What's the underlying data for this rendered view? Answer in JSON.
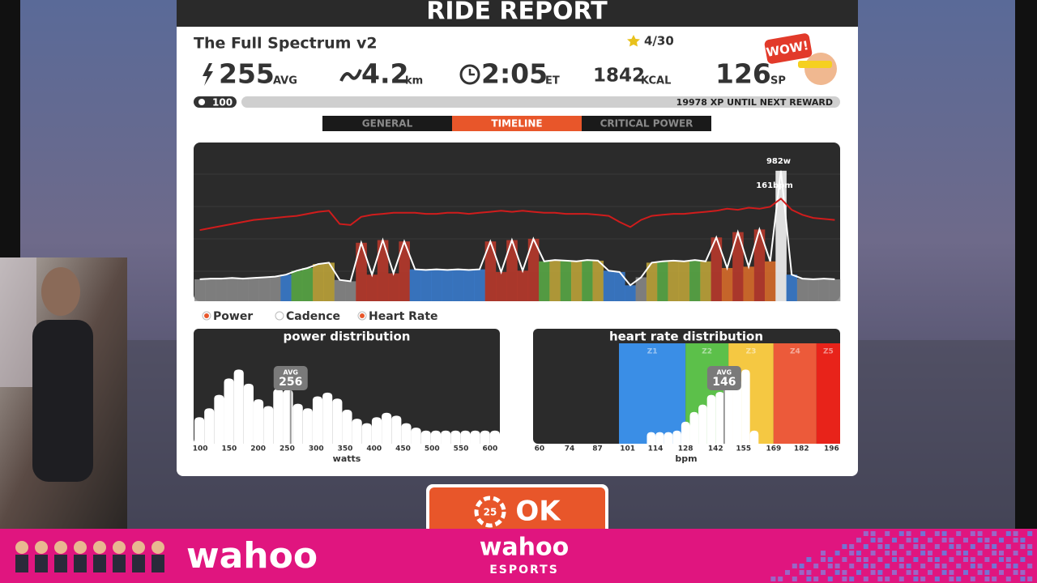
{
  "header": {
    "title": "RIDE REPORT",
    "ride_name": "The Full Spectrum v2",
    "stars": "4/30",
    "badge": "WOW!"
  },
  "stats": [
    {
      "value": 255,
      "unit": "AVG"
    },
    {
      "value": 4.2,
      "unit": "km"
    },
    {
      "value": "2:05",
      "unit": "ET"
    },
    {
      "value": 1842,
      "unit": "KCAL"
    },
    {
      "value": 126,
      "unit": "SP"
    }
  ],
  "progress": {
    "level": 100,
    "text": "19978 XP UNTIL NEXT REWARD"
  },
  "tabs": [
    "GENERAL",
    "TIMELINE",
    "CRITICAL POWER"
  ],
  "timeline": {
    "type": "line",
    "annotations": [
      "982w",
      "161bpm"
    ],
    "legend": [
      {
        "label": "Power",
        "color": "#e8562a"
      },
      {
        "label": "Cadence",
        "color": "#ffffff"
      },
      {
        "label": "Heart Rate",
        "color": "#e8562a"
      }
    ],
    "series": [
      {
        "name": "Power",
        "color": "#ffffff",
        "ylim": [
          0,
          1170
        ],
        "values": [
          165,
          170,
          170,
          175,
          170,
          175,
          180,
          185,
          200,
          230,
          250,
          280,
          290,
          160,
          150,
          440,
          200,
          460,
          210,
          450,
          240,
          235,
          240,
          235,
          240,
          235,
          240,
          450,
          220,
          460,
          230,
          470,
          300,
          310,
          305,
          300,
          310,
          305,
          230,
          220,
          120,
          180,
          290,
          300,
          305,
          300,
          310,
          300,
          480,
          250,
          520,
          260,
          540,
          300,
          982,
          200,
          170,
          165,
          170,
          165
        ],
        "colors": [
          "#8c8c8c",
          "#8c8c8c",
          "#8c8c8c",
          "#8c8c8c",
          "#8c8c8c",
          "#8c8c8c",
          "#8c8c8c",
          "#8c8c8c",
          "#3a7fd5",
          "#5aae46",
          "#5aae46",
          "#c4a93a",
          "#c4a93a",
          "#8c8c8c",
          "#8c8c8c",
          "#c0392b",
          "#c0392b",
          "#c0392b",
          "#c0392b",
          "#c0392b",
          "#3a7fd5",
          "#3a7fd5",
          "#3a7fd5",
          "#3a7fd5",
          "#3a7fd5",
          "#3a7fd5",
          "#3a7fd5",
          "#c0392b",
          "#c0392b",
          "#c0392b",
          "#c0392b",
          "#c0392b",
          "#5aae46",
          "#c4a93a",
          "#5aae46",
          "#c4a93a",
          "#5aae46",
          "#c4a93a",
          "#3a7fd5",
          "#3a7fd5",
          "#3a7fd5",
          "#8c8c8c",
          "#c4a93a",
          "#5aae46",
          "#c4a93a",
          "#c4a93a",
          "#5aae46",
          "#c4a93a",
          "#c0392b",
          "#e0702a",
          "#c0392b",
          "#e0702a",
          "#c0392b",
          "#e0702a",
          "#ffffff",
          "#3a7fd5",
          "#8c8c8c",
          "#8c8c8c",
          "#8c8c8c",
          "#8c8c8c"
        ]
      },
      {
        "name": "Heart Rate",
        "color": "#d01c1c",
        "ylim": [
          60,
          213
        ],
        "values": [
          130,
          132,
          134,
          136,
          138,
          140,
          141,
          142,
          143,
          144,
          146,
          148,
          149,
          136,
          135,
          143,
          145,
          146,
          147,
          147,
          147,
          146,
          146,
          147,
          147,
          146,
          147,
          148,
          149,
          148,
          149,
          148,
          147,
          147,
          146,
          146,
          146,
          145,
          144,
          138,
          133,
          140,
          144,
          145,
          146,
          146,
          147,
          148,
          149,
          151,
          150,
          152,
          151,
          153,
          161,
          150,
          145,
          142,
          141,
          140
        ]
      }
    ]
  },
  "power_distribution": {
    "type": "histogram",
    "title": "power distribution",
    "xlabel": "watts",
    "bins": [
      90,
      107,
      124,
      141,
      158,
      175,
      192,
      209,
      226,
      243,
      260,
      277,
      294,
      311,
      328,
      345,
      362,
      379,
      396,
      413,
      430,
      447,
      464,
      481,
      498,
      515,
      532,
      549,
      566,
      583,
      600,
      617
    ],
    "values": [
      28,
      40,
      58,
      80,
      92,
      73,
      52,
      43,
      66,
      65,
      46,
      40,
      56,
      61,
      53,
      38,
      26,
      20,
      28,
      34,
      30,
      20,
      14,
      10,
      10,
      10,
      10,
      10,
      10,
      10,
      10
    ],
    "xlim": [
      90,
      617
    ],
    "ylim": [
      0,
      100
    ],
    "xticks": [
      100,
      150,
      200,
      250,
      300,
      350,
      400,
      450,
      500,
      550,
      600
    ],
    "avg": {
      "label": "AVG",
      "value": 256
    },
    "color": "#ffffff"
  },
  "hr_distribution": {
    "type": "histogram",
    "title": "heart rate distribution",
    "xlabel": "bpm",
    "bins": [
      110,
      114,
      118,
      122,
      126,
      130,
      134,
      138,
      142,
      146,
      150,
      154,
      158,
      162
    ],
    "values": [
      8,
      8,
      8,
      10,
      22,
      35,
      45,
      58,
      62,
      70,
      80,
      92,
      10
    ],
    "xlim": [
      57,
      200
    ],
    "ylim": [
      0,
      100
    ],
    "xticks": [
      60,
      74,
      87,
      101,
      114,
      128,
      142,
      155,
      169,
      182,
      196
    ],
    "zones": [
      {
        "name": "Z1",
        "from": 97,
        "to": 128,
        "color": "#3a8ee6"
      },
      {
        "name": "Z2",
        "from": 128,
        "to": 148,
        "color": "#5cc04a"
      },
      {
        "name": "Z3",
        "from": 148,
        "to": 169,
        "color": "#f5c842"
      },
      {
        "name": "Z4",
        "from": 169,
        "to": 189,
        "color": "#ec5a3a"
      },
      {
        "name": "Z5",
        "from": 189,
        "to": 200,
        "color": "#e8231a"
      }
    ],
    "avg": {
      "label": "AVG",
      "value": 146
    },
    "color": "#ffffff"
  },
  "button": {
    "label": "OK",
    "countdown": 25
  },
  "banner": {
    "logo_left": "wahoo",
    "logo_center": "wahoo",
    "subtitle": "ESPORTS"
  }
}
